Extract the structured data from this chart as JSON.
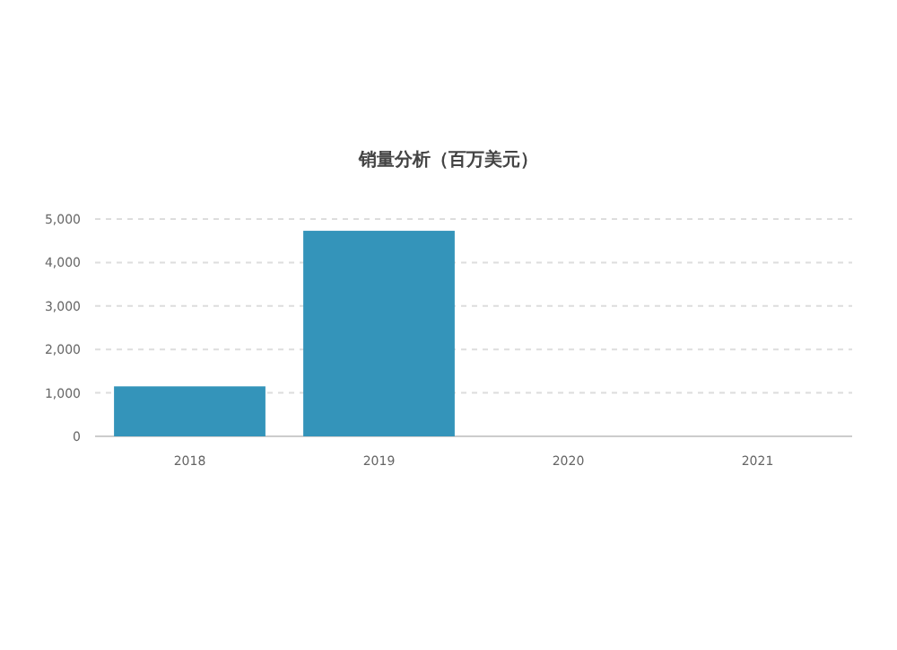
{
  "chart_data": {
    "type": "bar",
    "title": "销量分析（百万美元）",
    "categories": [
      "2018",
      "2019",
      "2020",
      "2021"
    ],
    "series": [
      {
        "color": "#3494ba",
        "values": [
          1150,
          4730,
          null,
          null
        ]
      }
    ],
    "ylim": [
      0,
      5000
    ],
    "yticks": [
      {
        "value": 0,
        "label": "0"
      },
      {
        "value": 1000,
        "label": "1,000"
      },
      {
        "value": 2000,
        "label": "2,000"
      },
      {
        "value": 3000,
        "label": "3,000"
      },
      {
        "value": 4000,
        "label": "4,000"
      },
      {
        "value": 5000,
        "label": "5,000"
      }
    ],
    "grid": "y"
  }
}
